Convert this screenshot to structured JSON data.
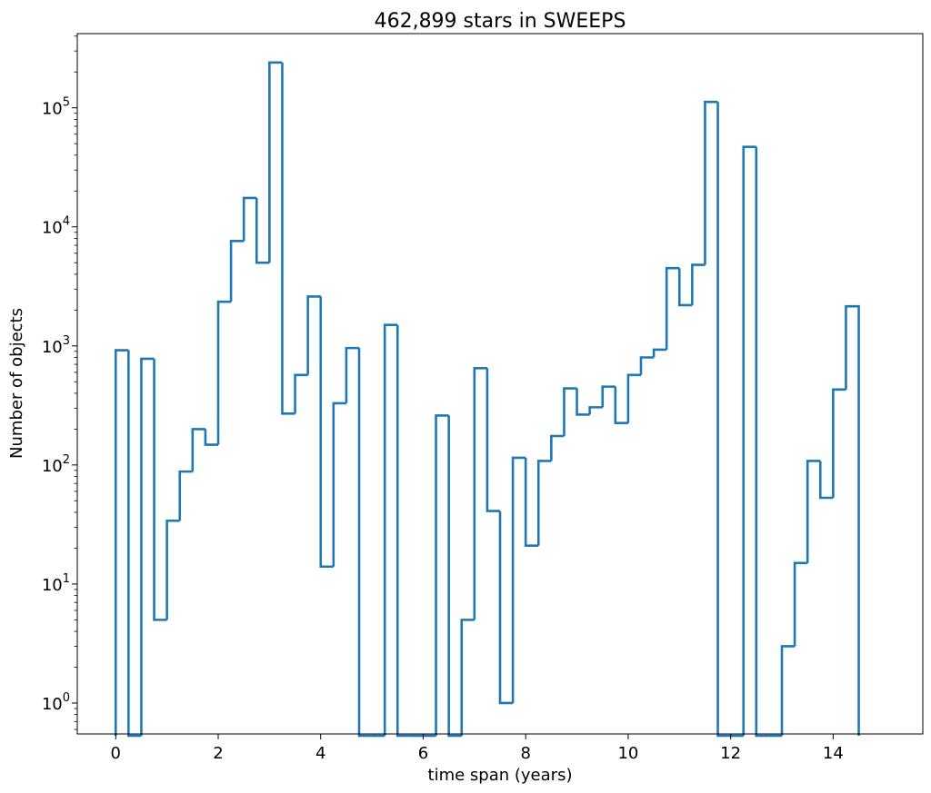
{
  "chart_data": {
    "type": "histogram",
    "title": "462,899 stars in SWEEPS",
    "xlabel": "time span (years)",
    "ylabel": "Number of objects",
    "xlim": [
      -0.75,
      15.75
    ],
    "ylim": [
      0.55,
      420000
    ],
    "yscale": "log",
    "grid": false,
    "line_color": "#1f77b4",
    "x_ticks": [
      0,
      2,
      4,
      6,
      8,
      10,
      12,
      14
    ],
    "x_tick_labels": [
      "0",
      "2",
      "4",
      "6",
      "8",
      "10",
      "12",
      "14"
    ],
    "y_ticks": [
      1,
      10,
      100,
      1000,
      10000,
      100000
    ],
    "y_tick_bases": [
      "10",
      "10",
      "10",
      "10",
      "10",
      "10"
    ],
    "y_tick_exponents": [
      "0",
      "1",
      "2",
      "3",
      "4",
      "5"
    ],
    "bin_width": 0.25,
    "bin_start": 0,
    "counts": [
      920,
      0,
      780,
      5,
      34,
      88,
      200,
      148,
      2350,
      7600,
      17500,
      5000,
      240000,
      270,
      570,
      2600,
      14,
      330,
      960,
      0,
      0,
      1500,
      0,
      0,
      0,
      260,
      0,
      5,
      650,
      41,
      1,
      115,
      21,
      108,
      175,
      440,
      265,
      305,
      455,
      225,
      570,
      800,
      930,
      4500,
      2200,
      4800,
      112000,
      0,
      0,
      47000,
      0,
      0,
      3,
      15,
      108,
      53,
      430,
      2150
    ]
  }
}
